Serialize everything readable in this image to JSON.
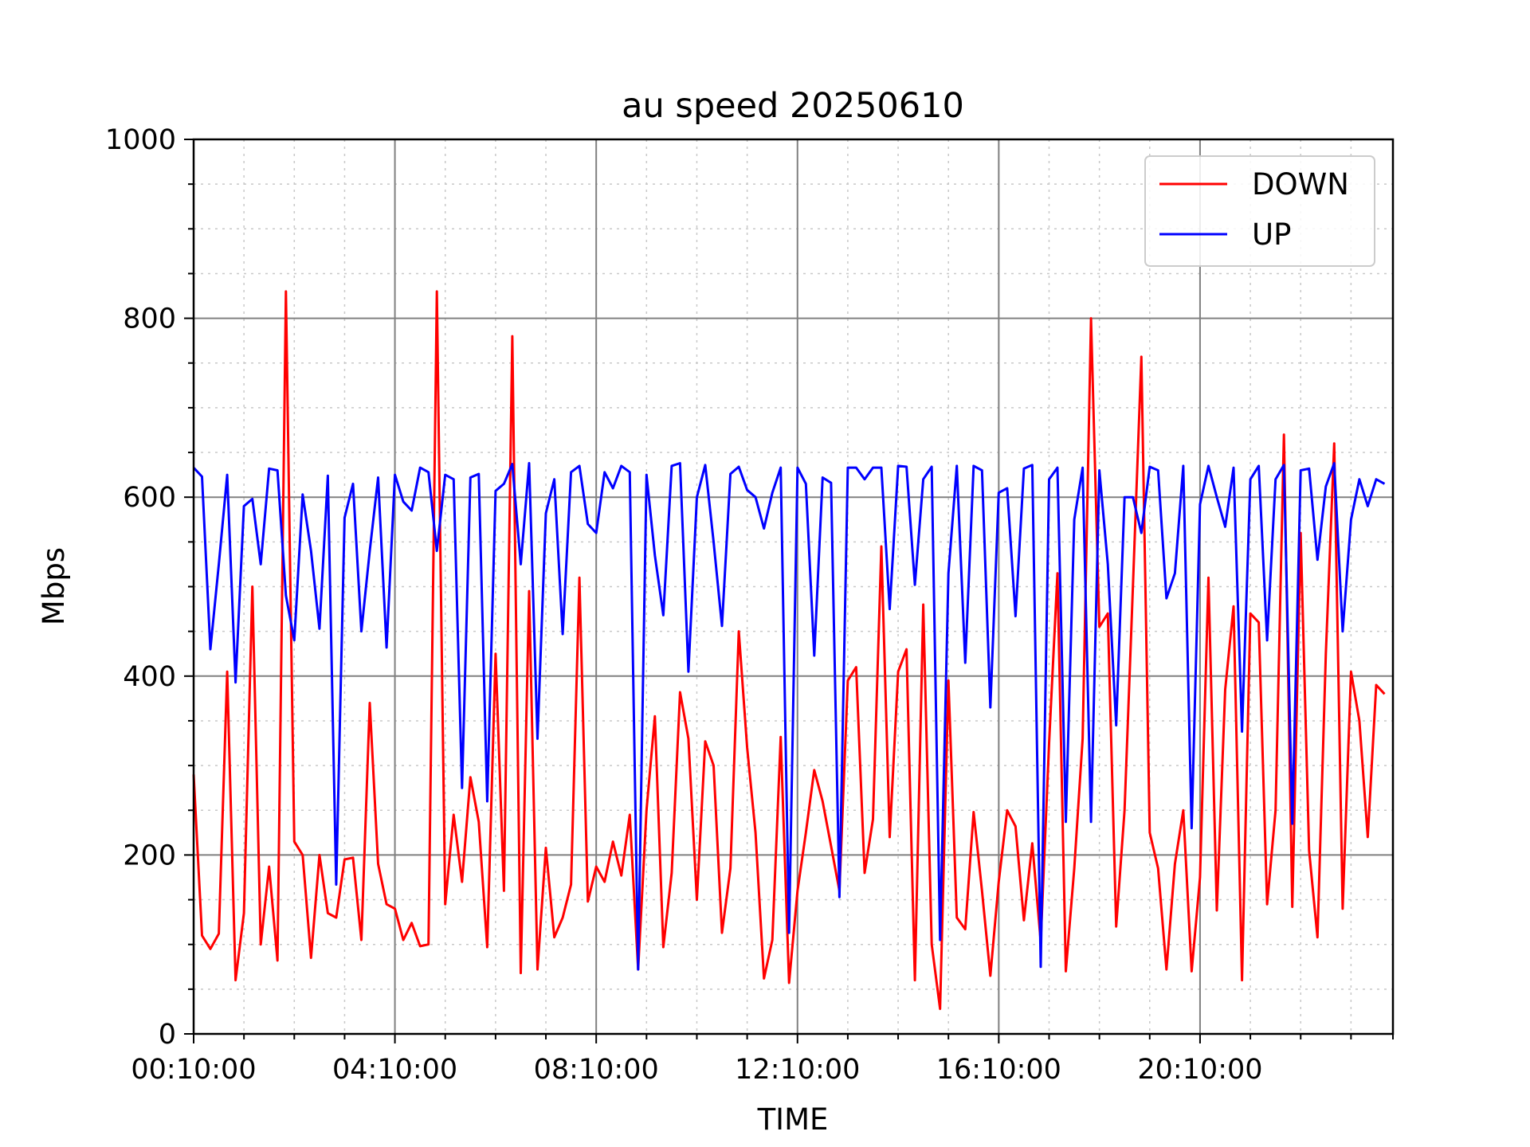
{
  "chart_data": {
    "type": "line",
    "title": "au speed 20250610",
    "xlabel": "TIME",
    "ylabel": "Mbps",
    "ylim": [
      0,
      1000
    ],
    "y_ticks": [
      "0",
      "200",
      "400",
      "600",
      "800",
      "1000"
    ],
    "x_ticks": [
      "00:10:00",
      "04:10:00",
      "08:10:00",
      "12:10:00",
      "16:10:00",
      "20:10:00"
    ],
    "x_range_minutes": [
      10,
      1440
    ],
    "grid": "major solid gray, minor dotted light gray",
    "legend_position": "top-right",
    "colors": {
      "DOWN": "#ff0000",
      "UP": "#0000ff"
    },
    "series": [
      {
        "name": "DOWN",
        "x_start": "00:10:00",
        "interval_minutes": 10,
        "values": [
          290,
          110,
          95,
          112,
          405,
          60,
          135,
          500,
          100,
          187,
          82,
          830,
          215,
          200,
          85,
          200,
          135,
          130,
          195,
          197,
          105,
          370,
          190,
          145,
          140,
          105,
          124,
          98,
          100,
          830,
          145,
          245,
          170,
          287,
          237,
          97,
          425,
          160,
          780,
          68,
          495,
          72,
          208,
          108,
          130,
          167,
          510,
          148,
          187,
          170,
          215,
          177,
          245,
          72,
          250,
          355,
          97,
          180,
          382,
          330,
          150,
          327,
          300,
          113,
          185,
          450,
          320,
          225,
          62,
          105,
          332,
          57,
          160,
          225,
          295,
          260,
          210,
          160,
          395,
          410,
          180,
          240,
          545,
          220,
          405,
          430,
          60,
          480,
          100,
          28,
          395,
          130,
          117,
          248,
          160,
          65,
          170,
          250,
          232,
          127,
          213,
          103,
          325,
          515,
          70,
          185,
          330,
          800,
          455,
          470,
          120,
          250,
          500,
          757,
          225,
          185,
          72,
          190,
          250,
          70,
          175,
          510,
          138,
          385,
          478,
          60,
          470,
          460,
          145,
          250,
          670,
          142,
          560,
          205,
          108,
          425,
          660,
          140,
          405,
          350,
          220,
          390,
          380
        ]
      },
      {
        "name": "UP",
        "x_start": "00:10:00",
        "interval_minutes": 10,
        "values": [
          633,
          623,
          430,
          525,
          625,
          393,
          590,
          598,
          525,
          632,
          630,
          490,
          440,
          603,
          540,
          453,
          624,
          167,
          577,
          615,
          450,
          540,
          622,
          432,
          625,
          595,
          585,
          633,
          628,
          540,
          625,
          620,
          275,
          622,
          626,
          260,
          607,
          615,
          637,
          525,
          638,
          330,
          582,
          620,
          447,
          628,
          635,
          570,
          560,
          628,
          610,
          635,
          628,
          72,
          625,
          535,
          468,
          635,
          638,
          405,
          600,
          636,
          550,
          456,
          626,
          634,
          608,
          600,
          565,
          605,
          633,
          113,
          633,
          615,
          423,
          622,
          616,
          153,
          633,
          633,
          620,
          633,
          633,
          475,
          635,
          634,
          502,
          620,
          634,
          105,
          515,
          635,
          415,
          635,
          630,
          365,
          605,
          610,
          467,
          632,
          636,
          75,
          620,
          633,
          237,
          575,
          633,
          237,
          630,
          525,
          345,
          600,
          600,
          560,
          634,
          630,
          487,
          515,
          635,
          230,
          592,
          635,
          600,
          567,
          633,
          338,
          620,
          635,
          440,
          620,
          636,
          235,
          630,
          632,
          530,
          612,
          638,
          450,
          575,
          620,
          590,
          620,
          615
        ]
      }
    ]
  }
}
